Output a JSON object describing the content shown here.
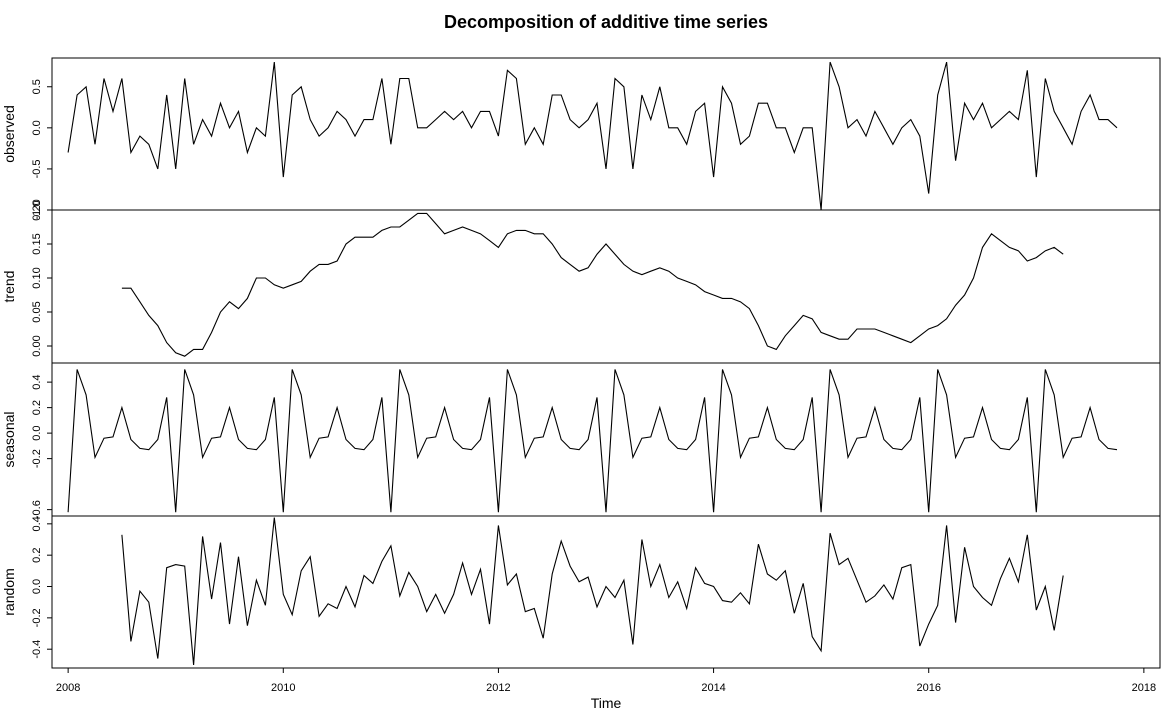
{
  "chart_data": {
    "type": "line",
    "title": "Decomposition of additive time series",
    "xlabel": "Time",
    "xlim": [
      2007.85,
      2018.15
    ],
    "x_ticks": [
      "2008",
      "2010",
      "2012",
      "2014",
      "2016",
      "2018"
    ],
    "x_start": 2008,
    "frequency": 12,
    "panels": [
      {
        "name": "observed",
        "ylabel": "observed",
        "ylim": [
          -1.0,
          0.85
        ],
        "y_ticks": [
          "-1.0",
          "-0.5",
          "0.0",
          "0.5"
        ],
        "start_index": 0,
        "values": [
          -0.3,
          0.4,
          0.5,
          -0.2,
          0.6,
          0.2,
          0.6,
          -0.3,
          -0.1,
          -0.2,
          -0.5,
          0.4,
          -0.5,
          0.6,
          -0.2,
          0.1,
          -0.1,
          0.3,
          0.0,
          0.2,
          -0.3,
          0.0,
          -0.1,
          0.8,
          -0.6,
          0.4,
          0.5,
          0.1,
          -0.1,
          0.0,
          0.2,
          0.1,
          -0.1,
          0.1,
          0.1,
          0.6,
          -0.2,
          0.6,
          0.6,
          0.0,
          0.0,
          0.1,
          0.2,
          0.1,
          0.2,
          0.0,
          0.2,
          0.2,
          -0.1,
          0.7,
          0.6,
          -0.2,
          0.0,
          -0.2,
          0.4,
          0.4,
          0.1,
          0.0,
          0.1,
          0.3,
          -0.5,
          0.6,
          0.5,
          -0.5,
          0.4,
          0.1,
          0.5,
          0.0,
          0.0,
          -0.2,
          0.2,
          0.3,
          -0.6,
          0.5,
          0.3,
          -0.2,
          -0.1,
          0.3,
          0.3,
          0.0,
          0.0,
          -0.3,
          0.0,
          0.0,
          -1.0,
          0.8,
          0.5,
          0.0,
          0.1,
          -0.1,
          0.2,
          0.0,
          -0.2,
          0.0,
          0.1,
          -0.1,
          -0.8,
          0.4,
          0.8,
          -0.4,
          0.3,
          0.1,
          0.3,
          0.0,
          0.1,
          0.2,
          0.1,
          0.7,
          -0.6,
          0.6,
          0.2,
          0.0,
          -0.2,
          0.2,
          0.4,
          0.1,
          0.1,
          0.0
        ]
      },
      {
        "name": "trend",
        "ylabel": "trend",
        "ylim": [
          -0.025,
          0.2
        ],
        "y_ticks": [
          "0.00",
          "0.05",
          "0.10",
          "0.15",
          "0.20"
        ],
        "start_index": 6,
        "values": [
          0.085,
          0.085,
          0.065,
          0.045,
          0.03,
          0.005,
          -0.01,
          -0.015,
          -0.005,
          -0.005,
          0.02,
          0.05,
          0.065,
          0.055,
          0.07,
          0.1,
          0.1,
          0.09,
          0.085,
          0.09,
          0.095,
          0.11,
          0.12,
          0.12,
          0.125,
          0.15,
          0.16,
          0.16,
          0.16,
          0.17,
          0.175,
          0.175,
          0.185,
          0.195,
          0.195,
          0.18,
          0.165,
          0.17,
          0.175,
          0.17,
          0.165,
          0.155,
          0.145,
          0.165,
          0.17,
          0.17,
          0.165,
          0.165,
          0.15,
          0.13,
          0.12,
          0.11,
          0.115,
          0.135,
          0.15,
          0.135,
          0.12,
          0.11,
          0.105,
          0.11,
          0.115,
          0.11,
          0.1,
          0.095,
          0.09,
          0.08,
          0.075,
          0.07,
          0.07,
          0.065,
          0.055,
          0.03,
          0.0,
          -0.005,
          0.015,
          0.03,
          0.045,
          0.04,
          0.02,
          0.015,
          0.01,
          0.01,
          0.025,
          0.025,
          0.025,
          0.02,
          0.015,
          0.01,
          0.005,
          0.015,
          0.025,
          0.03,
          0.04,
          0.06,
          0.075,
          0.1,
          0.145,
          0.165,
          0.155,
          0.145,
          0.14,
          0.125,
          0.13,
          0.14,
          0.145,
          0.135
        ]
      },
      {
        "name": "seasonal",
        "ylabel": "seasonal",
        "ylim": [
          -0.65,
          0.55
        ],
        "y_ticks": [
          "-0.6",
          "-0.2",
          "0.0",
          "0.2",
          "0.4"
        ],
        "start_index": 0,
        "pattern": [
          -0.62,
          0.5,
          0.3,
          -0.19,
          -0.04,
          -0.03,
          0.2,
          -0.05,
          -0.12,
          -0.13,
          -0.05,
          0.28
        ],
        "length": 118
      },
      {
        "name": "random",
        "ylabel": "random",
        "ylim": [
          -0.52,
          0.45
        ],
        "y_ticks": [
          "-0.4",
          "-0.2",
          "0.0",
          "0.2",
          "0.4"
        ],
        "start_index": 6,
        "values": [
          0.33,
          -0.35,
          -0.03,
          -0.1,
          -0.46,
          0.12,
          0.14,
          0.13,
          -0.5,
          0.32,
          -0.08,
          0.28,
          -0.24,
          0.19,
          -0.25,
          0.04,
          -0.12,
          0.44,
          -0.05,
          -0.18,
          0.1,
          0.19,
          -0.19,
          -0.11,
          -0.14,
          0.0,
          -0.13,
          0.07,
          0.02,
          0.16,
          0.26,
          -0.06,
          0.09,
          0.0,
          -0.16,
          -0.05,
          -0.17,
          -0.05,
          0.15,
          -0.05,
          0.11,
          -0.24,
          0.39,
          0.01,
          0.08,
          -0.16,
          -0.14,
          -0.33,
          0.08,
          0.29,
          0.13,
          0.03,
          0.06,
          -0.13,
          0.0,
          -0.07,
          0.04,
          -0.37,
          0.3,
          0.0,
          0.14,
          -0.07,
          0.03,
          -0.14,
          0.12,
          0.02,
          0.0,
          -0.09,
          -0.1,
          -0.04,
          -0.11,
          0.27,
          0.08,
          0.04,
          0.1,
          -0.17,
          0.02,
          -0.32,
          -0.41,
          0.34,
          0.14,
          0.18,
          0.04,
          -0.1,
          -0.06,
          0.01,
          -0.08,
          0.12,
          0.14,
          -0.38,
          -0.24,
          -0.12,
          0.39,
          -0.23,
          0.25,
          0.0,
          -0.07,
          -0.12,
          0.05,
          0.18,
          0.03,
          0.33,
          -0.15,
          0.0,
          -0.28,
          0.07
        ]
      }
    ]
  }
}
